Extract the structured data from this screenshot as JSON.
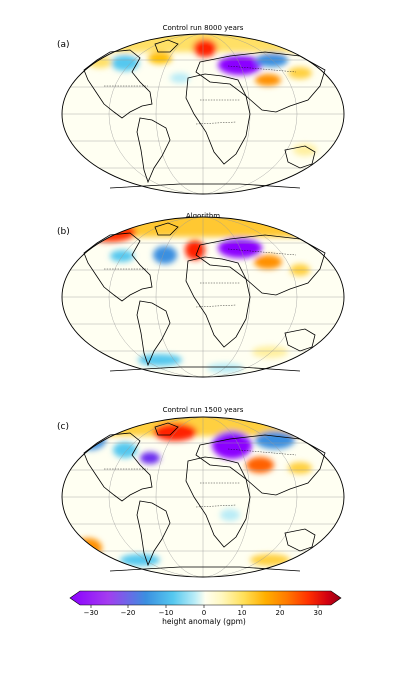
{
  "panels": [
    {
      "letter": "(a)",
      "title": "Control run 8000 years"
    },
    {
      "letter": "(b)",
      "title": "Algorithm"
    },
    {
      "letter": "(c)",
      "title": "Control run 1500 years"
    }
  ],
  "colorbar": {
    "label": "height anomaly (gpm)",
    "ticks": [
      "−30",
      "−20",
      "−10",
      "0",
      "10",
      "20",
      "30"
    ],
    "colors": [
      "#8b00ff",
      "#a43cf0",
      "#3b8fe0",
      "#55c8ef",
      "#b9ecf7",
      "#fffff0",
      "#fff8c0",
      "#ffe05a",
      "#ffb000",
      "#ff7a00",
      "#ff3000",
      "#d20010",
      "#8f0018"
    ]
  }
}
